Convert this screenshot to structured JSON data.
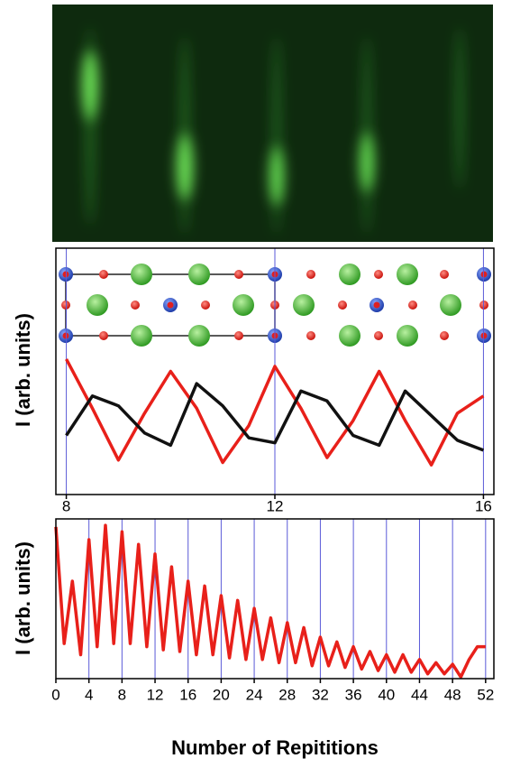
{
  "chart_data": [
    {
      "type": "line",
      "ylabel": "I (arb. units)",
      "x": [
        8,
        8.5,
        9,
        9.5,
        10,
        10.5,
        11,
        11.5,
        12,
        12.5,
        13,
        13.5,
        14,
        14.5,
        15,
        15.5,
        16
      ],
      "series": [
        {
          "color": "#e8201a",
          "values": [
            0.55,
            0.35,
            0.14,
            0.33,
            0.5,
            0.35,
            0.13,
            0.28,
            0.52,
            0.35,
            0.15,
            0.3,
            0.5,
            0.3,
            0.12,
            0.33,
            0.4
          ]
        },
        {
          "color": "#111111",
          "values": [
            0.24,
            0.4,
            0.36,
            0.25,
            0.2,
            0.45,
            0.36,
            0.23,
            0.21,
            0.42,
            0.38,
            0.24,
            0.2,
            0.42,
            0.32,
            0.22,
            0.18
          ]
        }
      ],
      "xlim": [
        7.8,
        16.2
      ],
      "xticks": [
        8,
        12,
        16
      ],
      "ylim": [
        0,
        1
      ],
      "grid": true
    },
    {
      "type": "line",
      "xlabel": "Number of Repititions",
      "ylabel": "I (arb. units)",
      "x": [
        0,
        1,
        2,
        3,
        4,
        5,
        6,
        7,
        8,
        9,
        10,
        11,
        12,
        13,
        14,
        15,
        16,
        17,
        18,
        19,
        20,
        21,
        22,
        23,
        24,
        25,
        26,
        27,
        28,
        29,
        30,
        31,
        32,
        33,
        34,
        35,
        36,
        37,
        38,
        39,
        40,
        41,
        42,
        43,
        44,
        45,
        46,
        47,
        48,
        49,
        50,
        51,
        52
      ],
      "series": [
        {
          "color": "#e8201a",
          "values": [
            0.95,
            0.22,
            0.61,
            0.15,
            0.87,
            0.2,
            0.96,
            0.22,
            0.92,
            0.22,
            0.84,
            0.2,
            0.78,
            0.18,
            0.7,
            0.17,
            0.61,
            0.15,
            0.58,
            0.15,
            0.52,
            0.13,
            0.49,
            0.12,
            0.44,
            0.12,
            0.38,
            0.1,
            0.35,
            0.1,
            0.32,
            0.08,
            0.26,
            0.08,
            0.23,
            0.07,
            0.2,
            0.06,
            0.17,
            0.05,
            0.15,
            0.04,
            0.15,
            0.04,
            0.12,
            0.03,
            0.1,
            0.03,
            0.09,
            0.01,
            0.12,
            0.2,
            0.2
          ]
        }
      ],
      "xlim": [
        0,
        53
      ],
      "xticks": [
        0,
        4,
        8,
        12,
        16,
        20,
        24,
        28,
        32,
        36,
        40,
        44,
        48,
        52
      ],
      "ylim": [
        0,
        1
      ],
      "grid": true
    }
  ]
}
